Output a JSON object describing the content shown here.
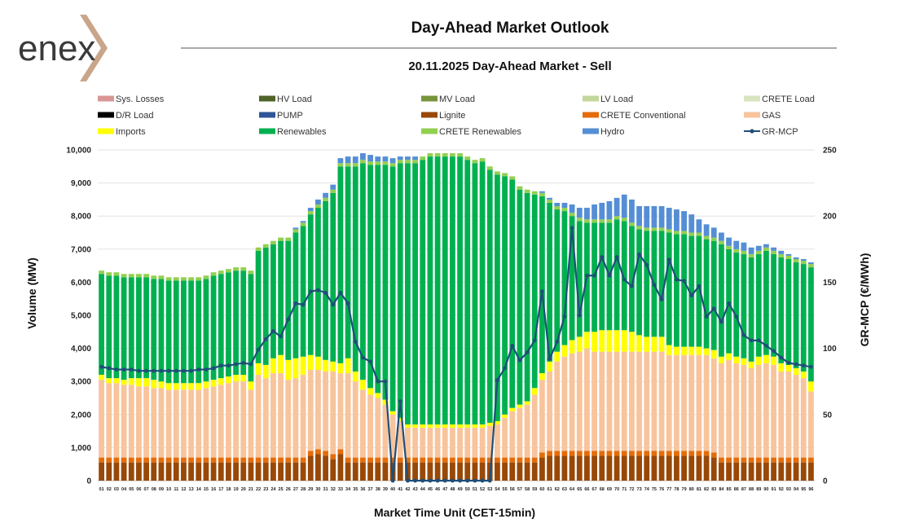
{
  "brand": {
    "name": "enex",
    "text_color": "#3a3a3a",
    "accent_color": "#c9a58a"
  },
  "chart_data": {
    "type": "bar",
    "stacked": true,
    "title": "Day-Ahead Market Outlook",
    "subtitle": "20.11.2025  Day-Ahead Market - Sell",
    "xlabel": "Market Time Unit (CET-15min)",
    "ylabel": "Volume (MW)",
    "ylabel_right": "GR-MCP (€/MWh)",
    "ylim": [
      0,
      10000
    ],
    "ylim_right": [
      0,
      250
    ],
    "yticks": [
      "0",
      "1,000",
      "2,000",
      "3,000",
      "4,000",
      "5,000",
      "6,000",
      "7,000",
      "8,000",
      "9,000",
      "10,000"
    ],
    "yticks_right": [
      "0",
      "50",
      "100",
      "150",
      "200",
      "250"
    ],
    "grid": true,
    "legend_position": "top",
    "categories": [
      "01",
      "02",
      "03",
      "04",
      "05",
      "06",
      "07",
      "08",
      "09",
      "10",
      "11",
      "12",
      "13",
      "14",
      "15",
      "16",
      "17",
      "18",
      "19",
      "20",
      "21",
      "22",
      "23",
      "24",
      "25",
      "26",
      "27",
      "28",
      "29",
      "30",
      "31",
      "32",
      "33",
      "34",
      "35",
      "36",
      "37",
      "38",
      "39",
      "40",
      "41",
      "42",
      "43",
      "44",
      "45",
      "46",
      "47",
      "48",
      "49",
      "50",
      "51",
      "52",
      "53",
      "54",
      "55",
      "56",
      "57",
      "58",
      "59",
      "60",
      "61",
      "62",
      "63",
      "64",
      "65",
      "66",
      "67",
      "68",
      "69",
      "70",
      "71",
      "72",
      "73",
      "74",
      "75",
      "76",
      "77",
      "78",
      "79",
      "80",
      "81",
      "82",
      "83",
      "84",
      "85",
      "86",
      "87",
      "88",
      "89",
      "90",
      "91",
      "92",
      "93",
      "94",
      "95",
      "96"
    ],
    "legend": [
      {
        "name": "Sys. Losses",
        "color": "#d99694",
        "kind": "bar"
      },
      {
        "name": "HV Load",
        "color": "#4f6228",
        "kind": "bar"
      },
      {
        "name": "MV Load",
        "color": "#77933c",
        "kind": "bar"
      },
      {
        "name": "LV Load",
        "color": "#c3d69b",
        "kind": "bar"
      },
      {
        "name": "CRETE Load",
        "color": "#d7e4bd",
        "kind": "bar"
      },
      {
        "name": "D/R Load",
        "color": "#000000",
        "kind": "bar"
      },
      {
        "name": "PUMP",
        "color": "#2f5597",
        "kind": "bar"
      },
      {
        "name": "Lignite",
        "color": "#984807",
        "kind": "bar"
      },
      {
        "name": "CRETE Conventional",
        "color": "#e46c0a",
        "kind": "bar"
      },
      {
        "name": "GAS",
        "color": "#f8c49c",
        "kind": "bar"
      },
      {
        "name": "Imports",
        "color": "#ffff00",
        "kind": "bar"
      },
      {
        "name": "Renewables",
        "color": "#00b050",
        "kind": "bar"
      },
      {
        "name": "CRETE Renewables",
        "color": "#92d050",
        "kind": "bar"
      },
      {
        "name": "Hydro",
        "color": "#558ed5",
        "kind": "bar"
      },
      {
        "name": "GR-MCP",
        "color": "#1f4e79",
        "kind": "line"
      }
    ],
    "series": [
      {
        "name": "Lignite",
        "color": "#984807",
        "values": [
          550,
          550,
          550,
          550,
          550,
          550,
          550,
          550,
          550,
          550,
          550,
          550,
          550,
          550,
          550,
          550,
          550,
          550,
          550,
          550,
          550,
          550,
          550,
          550,
          550,
          550,
          550,
          550,
          750,
          800,
          750,
          650,
          800,
          550,
          550,
          550,
          550,
          550,
          550,
          550,
          550,
          550,
          550,
          550,
          550,
          550,
          550,
          550,
          550,
          550,
          550,
          550,
          550,
          550,
          550,
          550,
          550,
          550,
          550,
          700,
          750,
          750,
          750,
          750,
          750,
          750,
          750,
          750,
          750,
          750,
          750,
          750,
          750,
          750,
          750,
          750,
          750,
          750,
          750,
          750,
          750,
          750,
          700,
          550,
          550,
          550,
          550,
          550,
          550,
          550,
          550,
          550,
          550,
          550,
          550,
          550
        ]
      },
      {
        "name": "CRETE Conventional",
        "color": "#e46c0a",
        "values": [
          150,
          150,
          150,
          150,
          150,
          150,
          150,
          150,
          150,
          150,
          150,
          150,
          150,
          150,
          150,
          150,
          150,
          150,
          150,
          150,
          150,
          150,
          150,
          150,
          150,
          150,
          150,
          150,
          150,
          150,
          150,
          150,
          150,
          150,
          150,
          150,
          150,
          150,
          150,
          150,
          150,
          150,
          150,
          150,
          150,
          150,
          150,
          150,
          150,
          150,
          150,
          150,
          150,
          150,
          150,
          150,
          150,
          150,
          150,
          150,
          150,
          150,
          150,
          150,
          150,
          150,
          150,
          150,
          150,
          150,
          150,
          150,
          150,
          150,
          150,
          150,
          150,
          150,
          150,
          150,
          150,
          150,
          150,
          150,
          150,
          150,
          150,
          150,
          150,
          150,
          150,
          150,
          150,
          150,
          150,
          150
        ]
      },
      {
        "name": "GAS",
        "color": "#f8c49c",
        "values": [
          2350,
          2250,
          2250,
          2200,
          2200,
          2150,
          2150,
          2100,
          2100,
          2050,
          2050,
          2050,
          2050,
          2050,
          2100,
          2150,
          2200,
          2250,
          2300,
          2300,
          2050,
          2500,
          2400,
          2550,
          2550,
          2350,
          2400,
          2500,
          2450,
          2400,
          2400,
          2500,
          2300,
          2550,
          2300,
          2050,
          1900,
          1800,
          1600,
          1300,
          1100,
          900,
          900,
          900,
          900,
          900,
          900,
          900,
          900,
          900,
          900,
          900,
          950,
          1000,
          1200,
          1400,
          1500,
          1600,
          1900,
          2200,
          2400,
          2700,
          2850,
          2950,
          3000,
          3100,
          3000,
          3000,
          3000,
          3000,
          3000,
          3000,
          3000,
          3000,
          3000,
          3000,
          2900,
          2900,
          2900,
          2900,
          2900,
          2900,
          2850,
          2850,
          2950,
          2850,
          2800,
          2700,
          2800,
          2850,
          2800,
          2600,
          2600,
          2500,
          2400,
          2000
        ]
      },
      {
        "name": "Imports",
        "color": "#ffff00",
        "values": [
          150,
          150,
          150,
          150,
          200,
          250,
          250,
          250,
          200,
          200,
          200,
          200,
          200,
          200,
          200,
          200,
          200,
          200,
          200,
          200,
          250,
          350,
          400,
          450,
          550,
          600,
          600,
          550,
          450,
          400,
          350,
          300,
          300,
          450,
          300,
          300,
          200,
          150,
          150,
          100,
          100,
          100,
          100,
          100,
          100,
          100,
          100,
          100,
          100,
          100,
          100,
          100,
          100,
          100,
          100,
          100,
          100,
          100,
          200,
          200,
          300,
          300,
          350,
          400,
          450,
          500,
          600,
          650,
          650,
          650,
          650,
          600,
          500,
          450,
          450,
          450,
          300,
          250,
          250,
          250,
          250,
          200,
          250,
          200,
          200,
          200,
          200,
          200,
          250,
          250,
          250,
          250,
          200,
          200,
          200,
          300
        ]
      },
      {
        "name": "Renewables",
        "color": "#00b050",
        "values": [
          3050,
          3100,
          3100,
          3100,
          3050,
          3050,
          3050,
          3050,
          3100,
          3100,
          3100,
          3100,
          3100,
          3100,
          3100,
          3150,
          3150,
          3150,
          3150,
          3150,
          3250,
          3400,
          3550,
          3450,
          3450,
          3600,
          3800,
          3950,
          4250,
          4500,
          4800,
          5100,
          5950,
          5800,
          6200,
          6550,
          6750,
          6900,
          7100,
          7400,
          7700,
          7900,
          7900,
          8000,
          8100,
          8100,
          8100,
          8100,
          8100,
          8000,
          7900,
          7950,
          7650,
          7450,
          7200,
          6900,
          6500,
          6300,
          5850,
          5350,
          4800,
          4300,
          4050,
          3750,
          3500,
          3300,
          3300,
          3250,
          3250,
          3350,
          3300,
          3200,
          3200,
          3200,
          3200,
          3200,
          3400,
          3400,
          3400,
          3350,
          3350,
          3300,
          3300,
          3400,
          3150,
          3150,
          3150,
          3150,
          3100,
          3150,
          3100,
          3200,
          3200,
          3200,
          3250,
          3450
        ]
      },
      {
        "name": "CRETE Renewables",
        "color": "#92d050",
        "values": [
          100,
          100,
          100,
          100,
          100,
          100,
          100,
          100,
          100,
          100,
          100,
          100,
          100,
          100,
          100,
          100,
          100,
          100,
          100,
          100,
          100,
          100,
          100,
          100,
          100,
          100,
          100,
          100,
          100,
          100,
          100,
          100,
          100,
          100,
          100,
          100,
          100,
          100,
          100,
          100,
          100,
          100,
          100,
          100,
          100,
          100,
          100,
          100,
          100,
          100,
          100,
          100,
          100,
          100,
          100,
          100,
          100,
          100,
          100,
          100,
          100,
          100,
          100,
          100,
          100,
          100,
          100,
          100,
          100,
          100,
          100,
          100,
          100,
          100,
          100,
          100,
          100,
          100,
          100,
          100,
          100,
          100,
          100,
          100,
          100,
          100,
          100,
          100,
          100,
          100,
          100,
          100,
          100,
          100,
          100,
          100
        ]
      },
      {
        "name": "Hydro",
        "color": "#558ed5",
        "values": [
          0,
          0,
          0,
          0,
          0,
          0,
          0,
          0,
          0,
          0,
          0,
          0,
          0,
          0,
          0,
          0,
          0,
          0,
          0,
          0,
          0,
          0,
          0,
          0,
          0,
          0,
          50,
          50,
          100,
          150,
          150,
          150,
          150,
          200,
          200,
          200,
          200,
          150,
          150,
          150,
          100,
          100,
          100,
          0,
          0,
          0,
          0,
          0,
          0,
          0,
          0,
          0,
          0,
          0,
          0,
          0,
          0,
          0,
          0,
          50,
          50,
          100,
          150,
          250,
          300,
          350,
          450,
          500,
          550,
          550,
          700,
          700,
          600,
          650,
          650,
          650,
          650,
          650,
          600,
          550,
          400,
          350,
          300,
          250,
          250,
          250,
          250,
          200,
          150,
          100,
          100,
          100,
          50,
          50,
          50,
          50
        ]
      }
    ],
    "line": {
      "name": "GR-MCP",
      "color": "#1f4e79",
      "values": [
        86,
        85,
        84,
        84,
        84,
        83,
        83,
        83,
        83,
        83,
        83,
        83,
        83,
        84,
        84,
        85,
        87,
        87,
        88,
        89,
        88,
        99,
        107,
        113,
        109,
        122,
        134,
        133,
        143,
        144,
        142,
        133,
        142,
        134,
        105,
        93,
        90,
        75,
        75,
        0,
        60,
        0,
        0,
        0,
        0,
        0,
        0,
        0,
        0,
        0,
        0,
        0,
        0,
        76,
        85,
        102,
        91,
        97,
        106,
        143,
        92,
        105,
        124,
        191,
        125,
        155,
        155,
        169,
        155,
        169,
        152,
        147,
        171,
        163,
        148,
        137,
        167,
        152,
        151,
        140,
        147,
        124,
        130,
        120,
        134,
        124,
        110,
        106,
        106,
        102,
        98,
        93,
        89,
        88,
        87,
        86
      ]
    }
  }
}
